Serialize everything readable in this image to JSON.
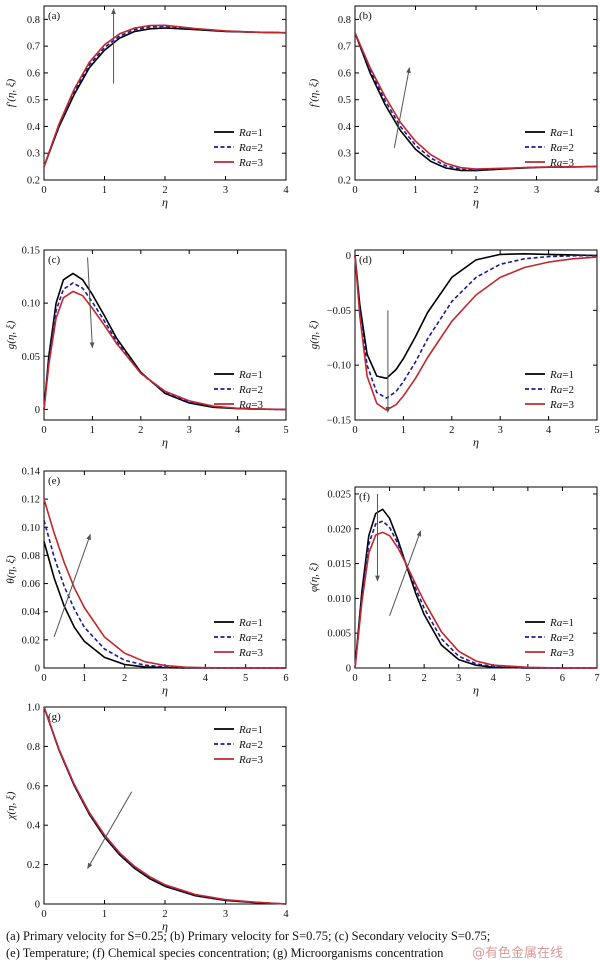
{
  "chart_data": [
    {
      "type": "line",
      "panel_label": "(a)",
      "xlabel": "η",
      "ylabel": "f′(η, ξ)",
      "xlim": [
        0,
        4
      ],
      "ylim": [
        0.2,
        0.85
      ],
      "xticks": [
        0,
        1,
        2,
        3,
        4
      ],
      "yticks": [
        0.2,
        0.3,
        0.4,
        0.5,
        0.6,
        0.7,
        0.8
      ],
      "ytick_labels": [
        "0.2",
        "0.3",
        "0.4",
        "0.5",
        "0.6",
        "0.7",
        "0.8"
      ],
      "legend_position": "center-right",
      "x": [
        0,
        0.25,
        0.5,
        0.75,
        1.0,
        1.25,
        1.5,
        1.75,
        2.0,
        2.5,
        3.0,
        3.5,
        4.0
      ],
      "series": [
        {
          "name": "Ra=1",
          "color": "#000000",
          "dash": "solid",
          "values": [
            0.25,
            0.4,
            0.52,
            0.62,
            0.685,
            0.73,
            0.755,
            0.765,
            0.768,
            0.762,
            0.755,
            0.752,
            0.75
          ]
        },
        {
          "name": "Ra=2",
          "color": "#1a1a99",
          "dash": "dashed",
          "values": [
            0.25,
            0.405,
            0.53,
            0.63,
            0.695,
            0.738,
            0.762,
            0.772,
            0.774,
            0.764,
            0.756,
            0.752,
            0.75
          ]
        },
        {
          "name": "Ra=3",
          "color": "#c0282d",
          "dash": "solid",
          "values": [
            0.25,
            0.41,
            0.54,
            0.64,
            0.705,
            0.746,
            0.768,
            0.777,
            0.778,
            0.766,
            0.757,
            0.752,
            0.75
          ]
        }
      ],
      "arrows": [
        {
          "x1": 1.15,
          "y1": 0.56,
          "x2": 1.15,
          "y2": 0.84
        }
      ]
    },
    {
      "type": "line",
      "panel_label": "(b)",
      "xlabel": "η",
      "ylabel": "f′(η, ξ)",
      "xlim": [
        0,
        4
      ],
      "ylim": [
        0.2,
        0.85
      ],
      "xticks": [
        0,
        1,
        2,
        3,
        4
      ],
      "yticks": [
        0.2,
        0.3,
        0.4,
        0.5,
        0.6,
        0.7,
        0.8
      ],
      "ytick_labels": [
        "0.2",
        "0.3",
        "0.4",
        "0.5",
        "0.6",
        "0.7",
        "0.8"
      ],
      "legend_position": "center-right",
      "x": [
        0,
        0.25,
        0.5,
        0.75,
        1.0,
        1.25,
        1.5,
        1.75,
        2.0,
        2.5,
        3.0,
        3.5,
        4.0
      ],
      "series": [
        {
          "name": "Ra=1",
          "color": "#000000",
          "dash": "solid",
          "values": [
            0.75,
            0.6,
            0.48,
            0.385,
            0.315,
            0.27,
            0.245,
            0.236,
            0.235,
            0.242,
            0.247,
            0.249,
            0.25
          ]
        },
        {
          "name": "Ra=2",
          "color": "#1a1a99",
          "dash": "dashed",
          "values": [
            0.75,
            0.61,
            0.495,
            0.4,
            0.33,
            0.282,
            0.253,
            0.24,
            0.237,
            0.243,
            0.248,
            0.249,
            0.25
          ]
        },
        {
          "name": "Ra=3",
          "color": "#c0282d",
          "dash": "solid",
          "values": [
            0.75,
            0.62,
            0.51,
            0.415,
            0.345,
            0.295,
            0.262,
            0.246,
            0.241,
            0.244,
            0.248,
            0.249,
            0.25
          ]
        }
      ],
      "arrows": [
        {
          "x1": 0.65,
          "y1": 0.32,
          "x2": 0.9,
          "y2": 0.62
        }
      ]
    },
    {
      "type": "line",
      "panel_label": "(c)",
      "xlabel": "η",
      "ylabel": "g(η, ξ)",
      "xlim": [
        0,
        5
      ],
      "ylim": [
        -0.01,
        0.15
      ],
      "xticks": [
        0,
        1,
        2,
        3,
        4,
        5
      ],
      "yticks": [
        0,
        0.05,
        0.1,
        0.15
      ],
      "ytick_labels": [
        "0",
        "0.05",
        "0.10",
        "0.15"
      ],
      "legend_position": "bottom-right",
      "x": [
        0,
        0.1,
        0.25,
        0.4,
        0.6,
        0.8,
        1.0,
        1.25,
        1.5,
        2.0,
        2.5,
        3.0,
        3.5,
        4.0,
        4.5,
        5.0
      ],
      "series": [
        {
          "name": "Ra=1",
          "color": "#000000",
          "dash": "solid",
          "values": [
            0,
            0.05,
            0.1,
            0.122,
            0.128,
            0.122,
            0.108,
            0.088,
            0.067,
            0.035,
            0.015,
            0.006,
            0.002,
            0.0007,
            0.0002,
            0
          ]
        },
        {
          "name": "Ra=2",
          "color": "#1a1a99",
          "dash": "dashed",
          "values": [
            0,
            0.046,
            0.093,
            0.113,
            0.119,
            0.114,
            0.101,
            0.083,
            0.064,
            0.034,
            0.016,
            0.007,
            0.0025,
            0.0008,
            0.0002,
            0
          ]
        },
        {
          "name": "Ra=3",
          "color": "#c0282d",
          "dash": "solid",
          "values": [
            0,
            0.042,
            0.086,
            0.105,
            0.111,
            0.107,
            0.095,
            0.079,
            0.062,
            0.034,
            0.017,
            0.008,
            0.003,
            0.001,
            0.0003,
            0
          ]
        }
      ],
      "arrows": [
        {
          "x1": 0.9,
          "y1": 0.143,
          "x2": 1.0,
          "y2": 0.058
        }
      ]
    },
    {
      "type": "line",
      "panel_label": "(d)",
      "xlabel": "η",
      "ylabel": "g(η, ξ)",
      "xlim": [
        0,
        5
      ],
      "ylim": [
        -0.15,
        0.005
      ],
      "xticks": [
        0,
        1,
        2,
        3,
        4,
        5
      ],
      "yticks": [
        -0.15,
        -0.1,
        -0.05,
        0
      ],
      "ytick_labels": [
        "−0.15",
        "−0.10",
        "−0.05",
        "0"
      ],
      "legend_position": "bottom-right",
      "x": [
        0,
        0.1,
        0.25,
        0.45,
        0.65,
        0.85,
        1.0,
        1.25,
        1.5,
        2.0,
        2.5,
        3.0,
        3.5,
        4.0,
        4.5,
        5.0
      ],
      "series": [
        {
          "name": "Ra=1",
          "color": "#000000",
          "dash": "solid",
          "values": [
            0,
            -0.045,
            -0.09,
            -0.11,
            -0.112,
            -0.104,
            -0.094,
            -0.074,
            -0.052,
            -0.02,
            -0.004,
            0.001,
            0.0015,
            0.001,
            0.0005,
            0
          ]
        },
        {
          "name": "Ra=2",
          "color": "#1a1a99",
          "dash": "dashed",
          "values": [
            0,
            -0.05,
            -0.1,
            -0.125,
            -0.13,
            -0.124,
            -0.115,
            -0.097,
            -0.076,
            -0.042,
            -0.02,
            -0.008,
            -0.003,
            -0.001,
            -0.0003,
            0
          ]
        },
        {
          "name": "Ra=3",
          "color": "#c0282d",
          "dash": "solid",
          "values": [
            0,
            -0.055,
            -0.11,
            -0.135,
            -0.141,
            -0.136,
            -0.128,
            -0.112,
            -0.093,
            -0.06,
            -0.036,
            -0.02,
            -0.011,
            -0.006,
            -0.003,
            -0.0015
          ]
        }
      ],
      "arrows": [
        {
          "x1": 0.68,
          "y1": -0.05,
          "x2": 0.68,
          "y2": -0.143
        }
      ]
    },
    {
      "type": "line",
      "panel_label": "(e)",
      "xlabel": "η",
      "ylabel": "θ(η, ξ)",
      "xlim": [
        0,
        6
      ],
      "ylim": [
        0,
        0.14
      ],
      "xticks": [
        0,
        1,
        2,
        3,
        4,
        5,
        6
      ],
      "yticks": [
        0,
        0.02,
        0.04,
        0.06,
        0.08,
        0.1,
        0.12,
        0.14
      ],
      "ytick_labels": [
        "0",
        "0.02",
        "0.04",
        "0.06",
        "0.08",
        "0.10",
        "0.12",
        "0.14"
      ],
      "legend_position": "bottom-right",
      "x": [
        0,
        0.25,
        0.5,
        0.75,
        1.0,
        1.5,
        2.0,
        2.5,
        3.0,
        3.5,
        4.0,
        5.0,
        6.0
      ],
      "series": [
        {
          "name": "Ra=1",
          "color": "#000000",
          "dash": "solid",
          "values": [
            0.09,
            0.064,
            0.044,
            0.029,
            0.019,
            0.0075,
            0.0025,
            0.0008,
            0.0002,
            0.0001,
            0,
            0,
            0
          ]
        },
        {
          "name": "Ra=2",
          "color": "#1a1a99",
          "dash": "dashed",
          "values": [
            0.105,
            0.079,
            0.058,
            0.042,
            0.029,
            0.0135,
            0.0055,
            0.002,
            0.0007,
            0.0002,
            0.0001,
            0,
            0
          ]
        },
        {
          "name": "Ra=3",
          "color": "#c0282d",
          "dash": "solid",
          "values": [
            0.12,
            0.096,
            0.075,
            0.057,
            0.043,
            0.022,
            0.0105,
            0.0045,
            0.0018,
            0.0006,
            0.0002,
            0,
            0
          ]
        }
      ],
      "arrows": [
        {
          "x1": 0.25,
          "y1": 0.022,
          "x2": 1.15,
          "y2": 0.095
        }
      ]
    },
    {
      "type": "line",
      "panel_label": "(f)",
      "xlabel": "η",
      "ylabel": "φ(η, ξ)",
      "xlim": [
        0,
        7
      ],
      "ylim": [
        0,
        0.026
      ],
      "xticks": [
        0,
        1,
        2,
        3,
        4,
        5,
        6,
        7
      ],
      "yticks": [
        0,
        0.005,
        0.01,
        0.015,
        0.02,
        0.025
      ],
      "ytick_labels": [
        "0",
        "0.005",
        "0.010",
        "0.015",
        "0.020",
        "0.025"
      ],
      "legend_position": "bottom-right",
      "x": [
        0,
        0.2,
        0.4,
        0.6,
        0.8,
        1.0,
        1.25,
        1.5,
        1.75,
        2.0,
        2.5,
        3.0,
        3.5,
        4.0,
        5.0,
        6.0,
        7.0
      ],
      "series": [
        {
          "name": "Ra=1",
          "color": "#000000",
          "dash": "solid",
          "values": [
            0,
            0.011,
            0.019,
            0.0222,
            0.0228,
            0.0215,
            0.0183,
            0.0145,
            0.0108,
            0.0077,
            0.0033,
            0.0012,
            0.0004,
            0.0001,
            0,
            0,
            0
          ]
        },
        {
          "name": "Ra=2",
          "color": "#1a1a99",
          "dash": "dashed",
          "values": [
            0,
            0.0102,
            0.0178,
            0.0207,
            0.0211,
            0.0202,
            0.0178,
            0.0147,
            0.0115,
            0.0086,
            0.0042,
            0.0017,
            0.0006,
            0.0002,
            0,
            0,
            0
          ]
        },
        {
          "name": "Ra=3",
          "color": "#c0282d",
          "dash": "solid",
          "values": [
            0,
            0.0095,
            0.0165,
            0.0191,
            0.0195,
            0.019,
            0.0172,
            0.0147,
            0.0121,
            0.0096,
            0.0052,
            0.0024,
            0.001,
            0.0004,
            0.0001,
            0,
            0
          ]
        }
      ],
      "arrows": [
        {
          "x1": 0.65,
          "y1": 0.025,
          "x2": 0.65,
          "y2": 0.0125
        },
        {
          "x1": 1.0,
          "y1": 0.0075,
          "x2": 1.9,
          "y2": 0.0197
        }
      ]
    },
    {
      "type": "line",
      "panel_label": "(g)",
      "xlabel": "η",
      "ylabel": "χ(η, ξ)",
      "xlim": [
        0,
        4
      ],
      "ylim": [
        0,
        1.0
      ],
      "xticks": [
        0,
        1,
        2,
        3,
        4
      ],
      "yticks": [
        0,
        0.2,
        0.4,
        0.6,
        0.8,
        1.0
      ],
      "ytick_labels": [
        "0",
        "0.2",
        "0.4",
        "0.6",
        "0.8",
        "1.0"
      ],
      "legend_position": "top-right",
      "x": [
        0,
        0.25,
        0.5,
        0.75,
        1.0,
        1.25,
        1.5,
        1.75,
        2.0,
        2.5,
        3.0,
        3.5,
        4.0
      ],
      "series": [
        {
          "name": "Ra=1",
          "color": "#000000",
          "dash": "solid",
          "values": [
            1.0,
            0.78,
            0.6,
            0.455,
            0.34,
            0.25,
            0.18,
            0.128,
            0.09,
            0.042,
            0.018,
            0.007,
            0
          ]
        },
        {
          "name": "Ra=2",
          "color": "#1a1a99",
          "dash": "dashed",
          "values": [
            1.0,
            0.782,
            0.603,
            0.459,
            0.345,
            0.255,
            0.185,
            0.133,
            0.094,
            0.045,
            0.02,
            0.008,
            0
          ]
        },
        {
          "name": "Ra=3",
          "color": "#c0282d",
          "dash": "solid",
          "values": [
            1.0,
            0.785,
            0.607,
            0.464,
            0.35,
            0.26,
            0.19,
            0.138,
            0.098,
            0.048,
            0.022,
            0.009,
            0
          ]
        }
      ],
      "arrows": [
        {
          "x1": 1.45,
          "y1": 0.57,
          "x2": 0.72,
          "y2": 0.18
        }
      ]
    }
  ],
  "caption": {
    "line1": "(a) Primary velocity for S=0.25; (b) Primary velocity for S=0.75; (c) Secondary velocity S=0.75;",
    "line2": "(e) Temperature; (f) Chemical species concentration; (g) Microorganisms concentration"
  },
  "watermark": "@有色金属在线"
}
